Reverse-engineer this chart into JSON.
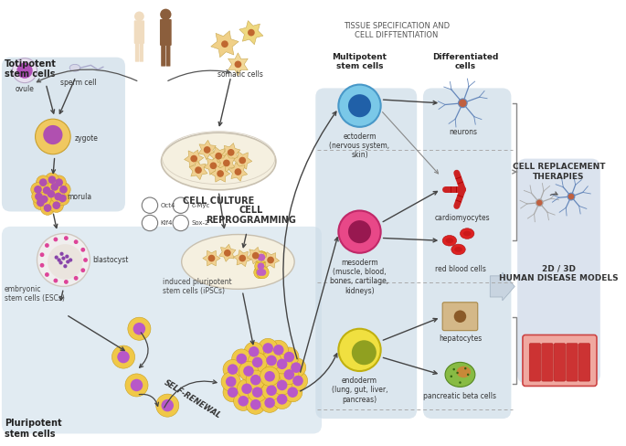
{
  "bg_color": "#ffffff",
  "panel_toti_color": "#dde8ef",
  "panel_pluri_color": "#d4e2ec",
  "panel_tissue_color": "#d8e6ee",
  "panel_diff_color": "#dce8f0",
  "panel_outcome_color": "#d8e2ec",
  "totipotent_label": "Totipotent\nstem cells",
  "pluripotent_label": "Pluripotent\nstem cells",
  "cell_culture_label": "CELL CULTURE",
  "cell_reprog_label": "CELL\nREPROGRAMMING",
  "self_renewal_label": "SELF-RENEWAL",
  "multipotent_label": "Multipotent\nstem cells",
  "differentiated_label": "Differentiated\ncells",
  "tissue_title": "TISSUE SPECIFICATION AND\nCELL DIFFTENTIATION",
  "ectoderm_label": "ectoderm\n(nervous system,\nskin)",
  "mesoderm_label": "mesoderm\n(muscle, blood,\nbones, cartilage,\nkidneys)",
  "endoderm_label": "endoderm\n(lung, gut, liver,\npancreas)",
  "neurons_label": "neurons",
  "cardiomyocytes_label": "cardiomyocytes",
  "rbc_label": "red blood cells",
  "hepatocytes_label": "hepatocytes",
  "pancreatic_label": "pancreatic beta cells",
  "cell_replacement_label": "CELL REPLACEMENT\nTHERAPIES",
  "human_disease_label": "2D / 3D\nHUMAN DISEASE MODELS",
  "ovule_label": "ovule",
  "sperm_label": "sperm cell",
  "zygote_label": "zygote",
  "morula_label": "morula",
  "blastocyst_label": "blastocyst",
  "somatic_label": "somatic cells",
  "ipsc_label": "induced pluripotent\nstem cells (iPSCs)",
  "esc_label": "embryonic\nstem cells (ESCs)",
  "oct4_label": "Oct4",
  "cmyc_label": "c-Myc",
  "klf4_label": "Klf4",
  "sox2_label": "Sox-2"
}
